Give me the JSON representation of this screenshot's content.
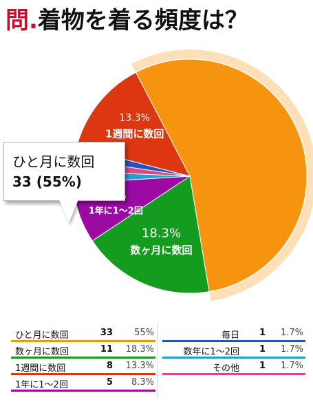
{
  "title": {
    "prefix": "問.",
    "text": "着物を着る頻度は？"
  },
  "chart_data": {
    "type": "pie",
    "title": "問.着物を着る頻度は？",
    "categories": [
      "ひと月に数回",
      "数ヶ月に数回",
      "1年に1〜2回",
      "毎日",
      "数年に1〜2回",
      "その他",
      "1週間に数回"
    ],
    "values": [
      33,
      11,
      5,
      1,
      1,
      1,
      8
    ],
    "percents": [
      "55%",
      "18.3%",
      "8.3%",
      "1.7%",
      "1.7%",
      "1.7%",
      "13.3%"
    ],
    "colors": [
      "#f7940f",
      "#149c1e",
      "#9b0aa3",
      "#1ea0d0",
      "#d84a87",
      "#2a4fc4",
      "#dd3711"
    ],
    "highlight_color": "#fde0b8",
    "slice_labels": [
      {
        "index": 1,
        "pct": "18.3%",
        "name": "数ヶ月に数回"
      },
      {
        "index": 2,
        "pct": "8.3%",
        "name": "1年に1〜2回"
      },
      {
        "index": 6,
        "pct": "13.3%",
        "name": "1週間に数回"
      }
    ],
    "callout": {
      "label": "ひと月に数回",
      "value": "33 (55%)"
    }
  },
  "legend": {
    "left": [
      {
        "label": "ひと月に数回",
        "count": "33",
        "pct": "55%",
        "color": "#f7940f"
      },
      {
        "label": "数ヶ月に数回",
        "count": "11",
        "pct": "18.3%",
        "color": "#149c1e"
      },
      {
        "label": "1週間に数回",
        "count": "8",
        "pct": "13.3%",
        "color": "#dd3711"
      },
      {
        "label": "1年に1〜2回",
        "count": "5",
        "pct": "8.3%",
        "color": "#9b0aa3"
      }
    ],
    "right": [
      {
        "label": "毎日",
        "count": "1",
        "pct": "1.7%",
        "color": "#2a4fc4"
      },
      {
        "label": "数年に1〜2回",
        "count": "1",
        "pct": "1.7%",
        "color": "#1ea0d0"
      },
      {
        "label": "その他",
        "count": "1",
        "pct": "1.7%",
        "color": "#d84a87"
      }
    ]
  }
}
